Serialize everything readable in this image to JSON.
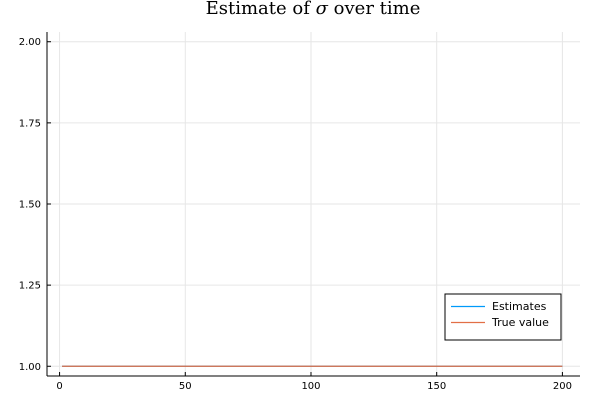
{
  "chart_data": {
    "type": "line",
    "title": "Estimate of σ over time",
    "title_prefix": "Estimate of ",
    "title_symbol": "σ",
    "title_suffix": " over time",
    "xlabel": "",
    "ylabel": "",
    "xlim": [
      -5,
      207
    ],
    "ylim": [
      0.97,
      2.03
    ],
    "xticks": [
      0,
      50,
      100,
      150,
      200
    ],
    "xtick_labels": [
      "0",
      "50",
      "100",
      "150",
      "200"
    ],
    "yticks": [
      1.0,
      1.25,
      1.5,
      1.75,
      2.0
    ],
    "ytick_labels": [
      "1.00",
      "1.25",
      "1.50",
      "1.75",
      "2.00"
    ],
    "grid": true,
    "legend_position": "bottom-right",
    "series": [
      {
        "name": "Estimates",
        "color": "#009AFA",
        "x": [
          1,
          200
        ],
        "y": [
          1.0,
          1.0
        ]
      },
      {
        "name": "True value",
        "color": "#E26F46",
        "x": [
          1,
          200
        ],
        "y": [
          1.0,
          1.0
        ]
      }
    ]
  }
}
